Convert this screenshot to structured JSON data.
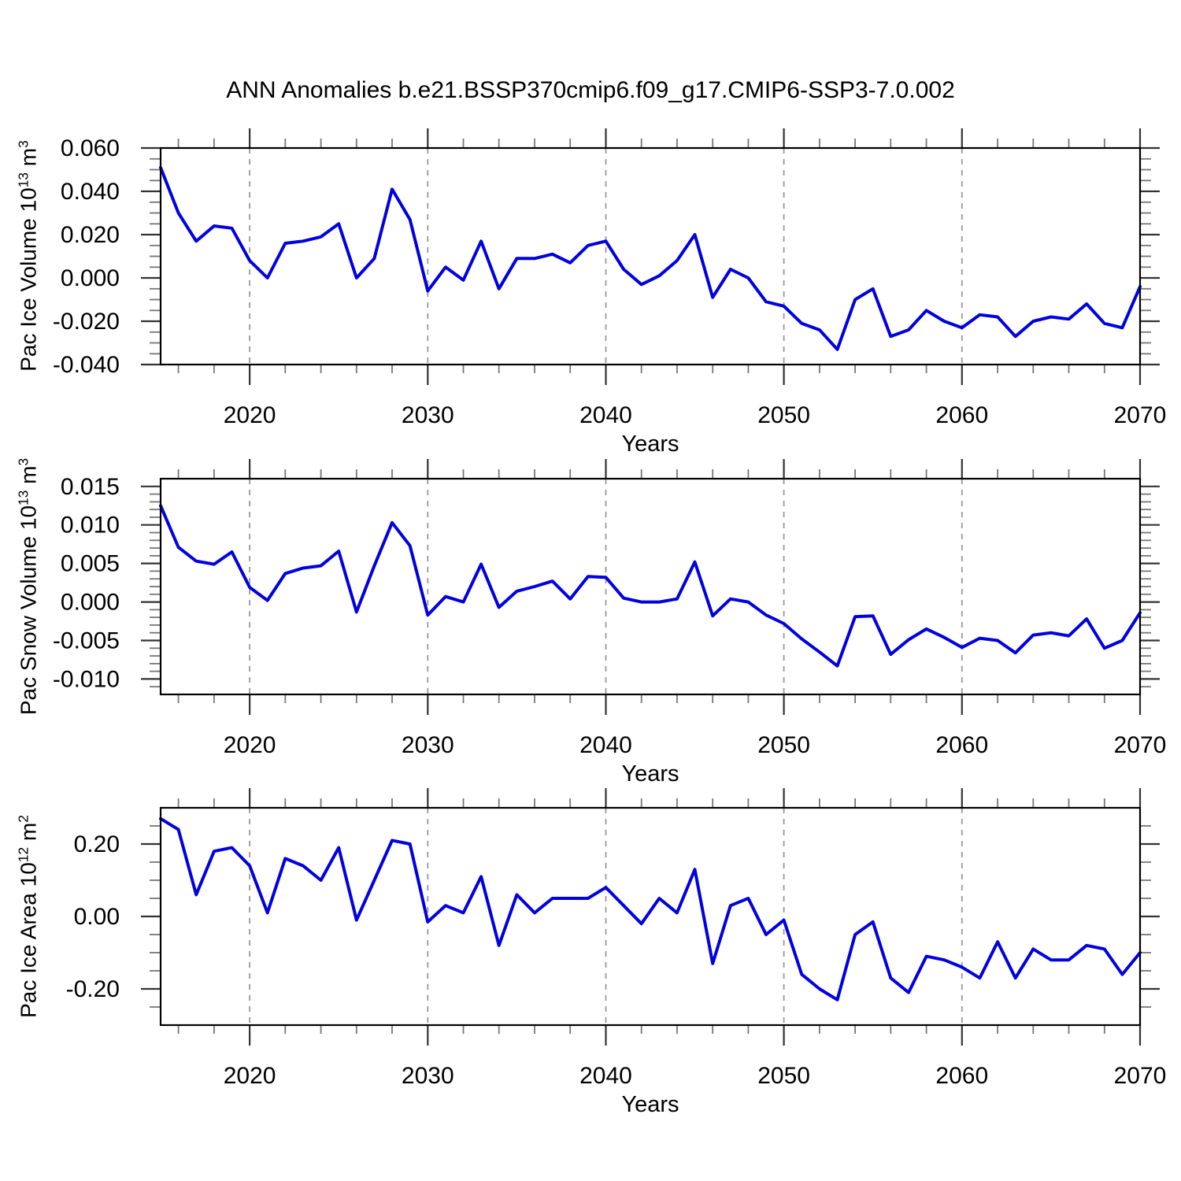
{
  "title": "ANN Anomalies b.e21.BSSP370cmip6.f09_g17.CMIP6-SSP3-7.0.002",
  "chart_data": {
    "type": "line",
    "title": "ANN Anomalies b.e21.BSSP370cmip6.f09_g17.CMIP6-SSP3-7.0.002",
    "line_color": "#0000e0",
    "grid_color": "#999999",
    "xlim": [
      2015,
      2070
    ],
    "grid_years": [
      2020,
      2030,
      2040,
      2050,
      2060
    ],
    "x_major_ticks": [
      2020,
      2030,
      2040,
      2050,
      2060,
      2070
    ],
    "x_tick_labels": [
      "2020",
      "2030",
      "2040",
      "2050",
      "2060",
      "2070"
    ],
    "x_minor_every": 2,
    "x": [
      2015,
      2016,
      2017,
      2018,
      2019,
      2020,
      2021,
      2022,
      2023,
      2024,
      2025,
      2026,
      2027,
      2028,
      2029,
      2030,
      2031,
      2032,
      2033,
      2034,
      2035,
      2036,
      2037,
      2038,
      2039,
      2040,
      2041,
      2042,
      2043,
      2044,
      2045,
      2046,
      2047,
      2048,
      2049,
      2050,
      2051,
      2052,
      2053,
      2054,
      2055,
      2056,
      2057,
      2058,
      2059,
      2060,
      2061,
      2062,
      2063,
      2064,
      2065,
      2066,
      2067,
      2068,
      2069,
      2070
    ],
    "panels": [
      {
        "name": "pac-ice-volume",
        "ylabel_prefix": "Pac Ice Volume 10",
        "ylabel_power": "13",
        "ylabel_unit": " m",
        "ylabel_unit_power": "3",
        "xlabel": "Years",
        "ylim": [
          -0.04,
          0.06
        ],
        "ytick_values": [
          0.06,
          0.04,
          0.02,
          0.0,
          -0.02,
          -0.04
        ],
        "ytick_labels": [
          "0.060",
          "0.040",
          "0.020",
          "0.000",
          "-0.020",
          "-0.040"
        ],
        "y_minor_step": 0.005,
        "values": [
          0.051,
          0.03,
          0.017,
          0.024,
          0.023,
          0.008,
          0.0,
          0.016,
          0.017,
          0.019,
          0.025,
          0.0,
          0.009,
          0.041,
          0.027,
          -0.006,
          0.005,
          -0.001,
          0.017,
          -0.005,
          0.009,
          0.009,
          0.011,
          0.007,
          0.015,
          0.017,
          0.004,
          -0.003,
          0.001,
          0.008,
          0.02,
          -0.009,
          0.004,
          0.0,
          -0.011,
          -0.013,
          -0.021,
          -0.024,
          -0.033,
          -0.01,
          -0.005,
          -0.027,
          -0.024,
          -0.015,
          -0.02,
          -0.023,
          -0.017,
          -0.018,
          -0.027,
          -0.02,
          -0.018,
          -0.019,
          -0.012,
          -0.021,
          -0.023,
          -0.004
        ]
      },
      {
        "name": "pac-snow-volume",
        "ylabel_prefix": "Pac Snow Volume 10",
        "ylabel_power": "13",
        "ylabel_unit": " m",
        "ylabel_unit_power": "3",
        "xlabel": "Years",
        "ylim": [
          -0.012,
          0.016
        ],
        "ytick_values": [
          0.015,
          0.01,
          0.005,
          0.0,
          -0.005,
          -0.01
        ],
        "ytick_labels": [
          "0.015",
          "0.010",
          "0.005",
          "0.000",
          "-0.005",
          "-0.010"
        ],
        "y_minor_step": 0.001,
        "values": [
          0.0125,
          0.0071,
          0.0053,
          0.0049,
          0.0065,
          0.0019,
          0.0002,
          0.0037,
          0.0044,
          0.0047,
          0.0066,
          -0.0013,
          0.0047,
          0.0103,
          0.0073,
          -0.0017,
          0.0007,
          0.0,
          0.0049,
          -0.0007,
          0.0014,
          0.002,
          0.0027,
          0.0004,
          0.0033,
          0.0032,
          0.0005,
          0.0,
          0.0,
          0.0004,
          0.0052,
          -0.0018,
          0.0004,
          0.0,
          -0.0017,
          -0.0028,
          -0.0048,
          -0.0065,
          -0.0083,
          -0.0019,
          -0.0018,
          -0.0068,
          -0.0049,
          -0.0035,
          -0.0046,
          -0.0059,
          -0.0047,
          -0.005,
          -0.0066,
          -0.0043,
          -0.004,
          -0.0044,
          -0.0022,
          -0.006,
          -0.005,
          -0.0014
        ]
      },
      {
        "name": "pac-ice-area",
        "ylabel_prefix": "Pac Ice Area 10",
        "ylabel_power": "12",
        "ylabel_unit": " m",
        "ylabel_unit_power": "2",
        "xlabel": "Years",
        "ylim": [
          -0.3,
          0.3
        ],
        "ytick_values": [
          0.2,
          0.0,
          -0.2
        ],
        "ytick_labels": [
          "0.20",
          "0.00",
          "-0.20"
        ],
        "y_minor_step": 0.05,
        "values": [
          0.27,
          0.24,
          0.06,
          0.18,
          0.19,
          0.14,
          0.01,
          0.16,
          0.14,
          0.1,
          0.19,
          -0.01,
          0.1,
          0.21,
          0.2,
          -0.015,
          0.03,
          0.01,
          0.11,
          -0.08,
          0.06,
          0.01,
          0.05,
          0.05,
          0.05,
          0.08,
          0.03,
          -0.02,
          0.05,
          0.01,
          0.13,
          -0.13,
          0.03,
          0.05,
          -0.05,
          -0.01,
          -0.16,
          -0.2,
          -0.23,
          -0.05,
          -0.015,
          -0.17,
          -0.21,
          -0.11,
          -0.12,
          -0.14,
          -0.17,
          -0.07,
          -0.17,
          -0.09,
          -0.12,
          -0.12,
          -0.08,
          -0.09,
          -0.16,
          -0.1
        ]
      }
    ]
  }
}
